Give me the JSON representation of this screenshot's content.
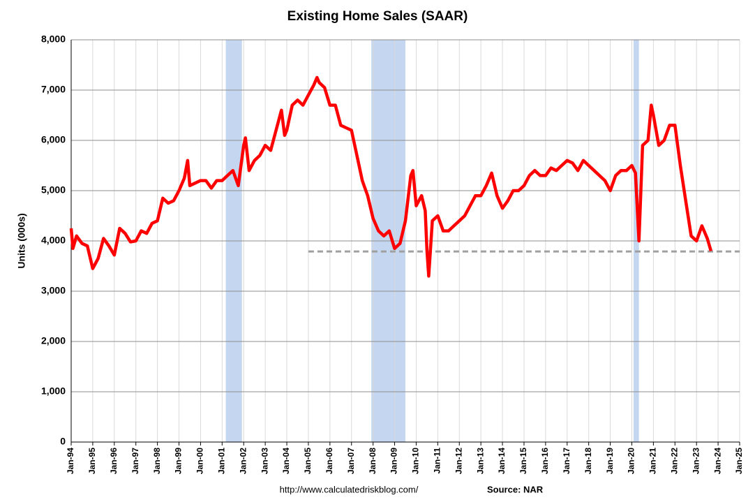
{
  "chart_data": {
    "type": "line",
    "title": "Existing Home Sales (SAAR)",
    "y_label": "Units (000s)",
    "footer_url": "http://www.calculatedriskblog.com/",
    "footer_source": "Source: NAR",
    "xlim": [
      1994,
      2025
    ],
    "xticks": [
      {
        "value": 1994,
        "label": "Jan-94"
      },
      {
        "value": 1995,
        "label": "Jan-95"
      },
      {
        "value": 1996,
        "label": "Jan-96"
      },
      {
        "value": 1997,
        "label": "Jan-97"
      },
      {
        "value": 1998,
        "label": "Jan-98"
      },
      {
        "value": 1999,
        "label": "Jan-99"
      },
      {
        "value": 2000,
        "label": "Jan-00"
      },
      {
        "value": 2001,
        "label": "Jan-01"
      },
      {
        "value": 2002,
        "label": "Jan-02"
      },
      {
        "value": 2003,
        "label": "Jan-03"
      },
      {
        "value": 2004,
        "label": "Jan-04"
      },
      {
        "value": 2005,
        "label": "Jan-05"
      },
      {
        "value": 2006,
        "label": "Jan-06"
      },
      {
        "value": 2007,
        "label": "Jan-07"
      },
      {
        "value": 2008,
        "label": "Jan-08"
      },
      {
        "value": 2009,
        "label": "Jan-09"
      },
      {
        "value": 2010,
        "label": "Jan-10"
      },
      {
        "value": 2011,
        "label": "Jan-11"
      },
      {
        "value": 2012,
        "label": "Jan-12"
      },
      {
        "value": 2013,
        "label": "Jan-13"
      },
      {
        "value": 2014,
        "label": "Jan-14"
      },
      {
        "value": 2015,
        "label": "Jan-15"
      },
      {
        "value": 2016,
        "label": "Jan-16"
      },
      {
        "value": 2017,
        "label": "Jan-17"
      },
      {
        "value": 2018,
        "label": "Jan-18"
      },
      {
        "value": 2019,
        "label": "Jan-19"
      },
      {
        "value": 2020,
        "label": "Jan-20"
      },
      {
        "value": 2021,
        "label": "Jan-21"
      },
      {
        "value": 2022,
        "label": "Jan-22"
      },
      {
        "value": 2023,
        "label": "Jan-23"
      },
      {
        "value": 2024,
        "label": "Jan-24"
      },
      {
        "value": 2025,
        "label": "Jan-25"
      }
    ],
    "ylim": [
      0,
      8000
    ],
    "yticks": [
      0,
      {
        "value": 1000,
        "label": "1,000"
      },
      {
        "value": 2000,
        "label": "2,000"
      },
      {
        "value": 3000,
        "label": "3,000"
      },
      {
        "value": 4000,
        "label": "4,000"
      },
      {
        "value": 5000,
        "label": "5,000"
      },
      {
        "value": 6000,
        "label": "6,000"
      },
      {
        "value": 7000,
        "label": "7,000"
      },
      {
        "value": 8000,
        "label": "8,000"
      }
    ],
    "grid": true,
    "recessions": [
      [
        2001.17,
        2001.92
      ],
      [
        2007.92,
        2009.5
      ],
      [
        2020.08,
        2020.33
      ]
    ],
    "recession_color": "#c5d7f0",
    "reference_line": {
      "value": 3790,
      "from": 2005,
      "color": "#a0a0a0"
    },
    "x": [
      1994.0,
      1994.08,
      1994.25,
      1994.5,
      1994.75,
      1995.0,
      1995.25,
      1995.5,
      1995.75,
      1996.0,
      1996.25,
      1996.5,
      1996.75,
      1997.0,
      1997.25,
      1997.5,
      1997.75,
      1998.0,
      1998.25,
      1998.5,
      1998.75,
      1999.0,
      1999.25,
      1999.4,
      1999.5,
      1999.75,
      2000.0,
      2000.25,
      2000.5,
      2000.75,
      2001.0,
      2001.25,
      2001.5,
      2001.75,
      2002.0,
      2002.08,
      2002.25,
      2002.5,
      2002.75,
      2003.0,
      2003.25,
      2003.5,
      2003.75,
      2003.9,
      2004.0,
      2004.25,
      2004.5,
      2004.75,
      2005.0,
      2005.25,
      2005.4,
      2005.5,
      2005.75,
      2006.0,
      2006.25,
      2006.5,
      2006.75,
      2007.0,
      2007.25,
      2007.5,
      2007.75,
      2008.0,
      2008.25,
      2008.5,
      2008.75,
      2009.0,
      2009.25,
      2009.5,
      2009.75,
      2009.85,
      2010.0,
      2010.25,
      2010.42,
      2010.5,
      2010.58,
      2010.75,
      2011.0,
      2011.25,
      2011.5,
      2011.75,
      2012.0,
      2012.25,
      2012.5,
      2012.75,
      2013.0,
      2013.25,
      2013.5,
      2013.75,
      2014.0,
      2014.25,
      2014.5,
      2014.75,
      2015.0,
      2015.25,
      2015.5,
      2015.75,
      2016.0,
      2016.25,
      2016.5,
      2016.75,
      2017.0,
      2017.25,
      2017.5,
      2017.75,
      2018.0,
      2018.25,
      2018.5,
      2018.75,
      2019.0,
      2019.25,
      2019.5,
      2019.75,
      2020.0,
      2020.17,
      2020.33,
      2020.5,
      2020.75,
      2020.9,
      2021.0,
      2021.25,
      2021.5,
      2021.75,
      2022.0,
      2022.25,
      2022.5,
      2022.75,
      2023.0,
      2023.25,
      2023.5,
      2023.67
    ],
    "series": [
      {
        "name": "Existing Home Sales",
        "color": "#ff0000",
        "values": [
          4250,
          3850,
          4100,
          3950,
          3900,
          3450,
          3650,
          4050,
          3900,
          3720,
          4250,
          4150,
          3980,
          4000,
          4200,
          4150,
          4350,
          4400,
          4850,
          4750,
          4800,
          5000,
          5250,
          5600,
          5100,
          5150,
          5200,
          5200,
          5050,
          5200,
          5200,
          5300,
          5400,
          5100,
          5900,
          6050,
          5400,
          5600,
          5700,
          5900,
          5800,
          6200,
          6600,
          6100,
          6200,
          6700,
          6800,
          6700,
          6900,
          7100,
          7250,
          7150,
          7050,
          6700,
          6700,
          6300,
          6250,
          6200,
          5700,
          5200,
          4900,
          4450,
          4200,
          4100,
          4200,
          3850,
          3950,
          4400,
          5300,
          5400,
          4700,
          4900,
          4600,
          3800,
          3300,
          4400,
          4500,
          4200,
          4200,
          4300,
          4400,
          4500,
          4700,
          4900,
          4900,
          5100,
          5350,
          4900,
          4650,
          4800,
          5000,
          5000,
          5100,
          5300,
          5400,
          5300,
          5300,
          5450,
          5400,
          5500,
          5600,
          5550,
          5400,
          5600,
          5500,
          5400,
          5300,
          5200,
          5000,
          5300,
          5400,
          5400,
          5500,
          5350,
          4000,
          5900,
          6000,
          6700,
          6500,
          5900,
          6000,
          6300,
          6300,
          5500,
          4800,
          4100,
          4000,
          4300,
          4050,
          3800
        ]
      }
    ]
  }
}
